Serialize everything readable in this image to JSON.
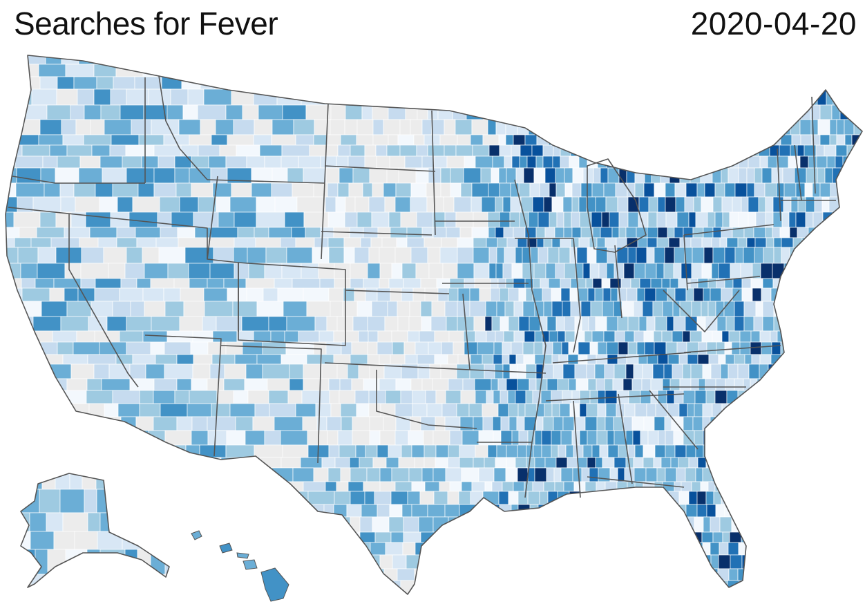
{
  "header": {
    "title": "Searches for Fever",
    "date": "2020-04-20"
  },
  "map": {
    "metric": "search interest by county",
    "scale_colors": [
      "#ececec",
      "#f3f8fd",
      "#d8e7f5",
      "#c6dbef",
      "#9ecae1",
      "#6baed6",
      "#4292c6",
      "#2171b5",
      "#08519c",
      "#08306b"
    ]
  }
}
